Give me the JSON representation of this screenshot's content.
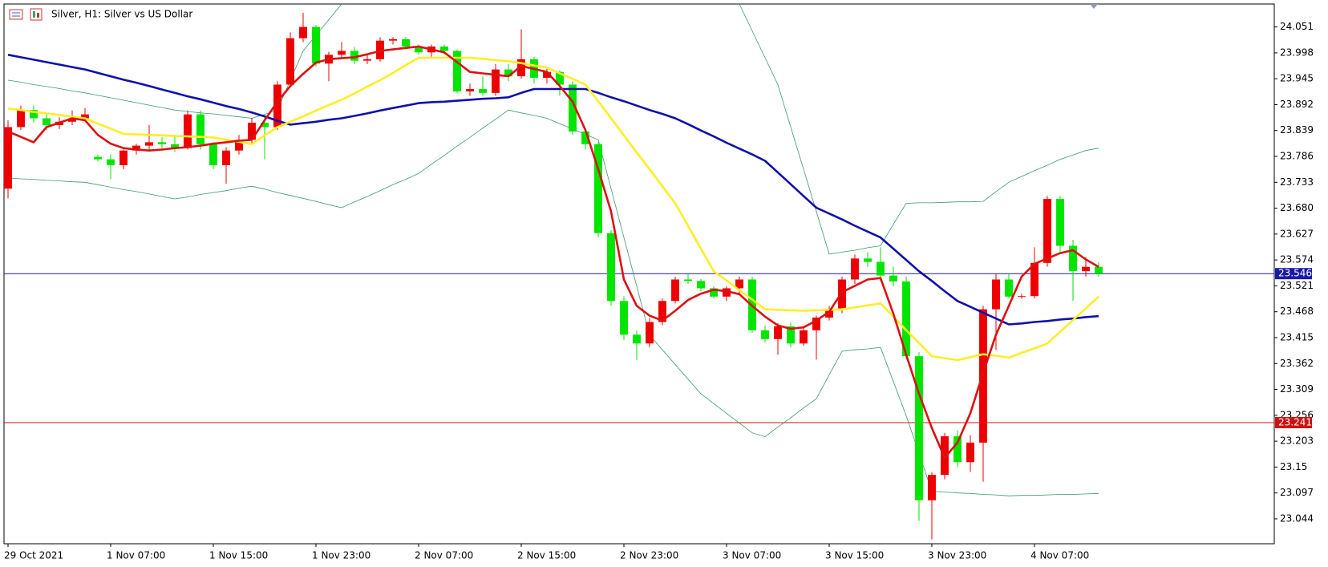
{
  "chart_data": {
    "type": "candlestick",
    "title": "Silver, H1:  Silver vs US Dollar",
    "categories": [
      "29 Oct 2021",
      null,
      null,
      null,
      null,
      null,
      null,
      null,
      "1 Nov 07:00",
      null,
      null,
      null,
      null,
      null,
      null,
      null,
      "1 Nov 15:00",
      null,
      null,
      null,
      null,
      null,
      null,
      null,
      "1 Nov 23:00",
      null,
      null,
      null,
      null,
      null,
      null,
      null,
      "2 Nov 07:00",
      null,
      null,
      null,
      null,
      null,
      null,
      null,
      "2 Nov 15:00",
      null,
      null,
      null,
      null,
      null,
      null,
      null,
      "2 Nov 23:00",
      null,
      null,
      null,
      null,
      null,
      null,
      null,
      "3 Nov 07:00",
      null,
      null,
      null,
      null,
      null,
      null,
      null,
      "3 Nov 15:00",
      null,
      null,
      null,
      null,
      null,
      null,
      null,
      "3 Nov 23:00",
      null,
      null,
      null,
      null,
      null,
      null,
      null,
      "4 Nov 07:00",
      null,
      null,
      null,
      null,
      null
    ],
    "open": [
      23.72,
      23.846,
      23.881,
      23.864,
      23.85,
      23.857,
      23.864,
      23.785,
      23.78,
      23.768,
      23.798,
      23.808,
      23.815,
      23.811,
      23.803,
      23.872,
      23.811,
      23.768,
      23.798,
      23.82,
      23.855,
      23.846,
      23.933,
      24.028,
      24.051,
      23.976,
      23.994,
      24.002,
      23.982,
      23.985,
      24.023,
      24.026,
      24.011,
      23.999,
      24.011,
      24.002,
      23.919,
      23.924,
      23.916,
      23.964,
      23.95,
      23.985,
      23.947,
      23.959,
      23.933,
      23.837,
      23.811,
      23.629,
      23.49,
      23.421,
      23.403,
      23.447,
      23.49,
      23.534,
      23.531,
      23.516,
      23.499,
      23.516,
      23.534,
      23.43,
      23.412,
      23.438,
      23.403,
      23.43,
      23.456,
      23.473,
      23.534,
      23.577,
      23.57,
      23.542,
      23.53,
      23.377,
      23.082,
      23.134,
      23.213,
      23.16,
      23.2,
      23.473,
      23.534,
      23.499,
      23.5,
      23.568,
      23.699,
      23.603,
      23.551,
      23.56
    ],
    "high": [
      23.86,
      23.89,
      23.89,
      23.875,
      23.866,
      23.88,
      23.885,
      23.79,
      23.79,
      23.8,
      23.812,
      23.85,
      23.825,
      23.83,
      23.88,
      23.88,
      23.815,
      23.805,
      23.83,
      23.865,
      23.87,
      23.94,
      24.04,
      24.08,
      24.055,
      24.0,
      24.02,
      24.01,
      23.995,
      24.03,
      24.03,
      24.03,
      24.015,
      24.015,
      24.015,
      24.005,
      23.935,
      23.95,
      23.975,
      23.975,
      24.046,
      23.99,
      23.965,
      23.962,
      23.94,
      23.845,
      23.815,
      23.635,
      23.5,
      23.43,
      23.455,
      23.495,
      23.54,
      23.545,
      23.535,
      23.52,
      23.52,
      23.54,
      23.54,
      23.44,
      23.445,
      23.445,
      23.435,
      23.46,
      23.48,
      23.54,
      23.585,
      23.59,
      23.6,
      23.56,
      23.54,
      23.385,
      23.14,
      23.22,
      23.225,
      23.215,
      23.48,
      23.545,
      23.545,
      23.505,
      23.6,
      23.705,
      23.705,
      23.615,
      23.58,
      23.57
    ],
    "low": [
      23.7,
      23.84,
      23.855,
      23.84,
      23.842,
      23.85,
      23.86,
      23.776,
      23.74,
      23.76,
      23.79,
      23.8,
      23.8,
      23.795,
      23.8,
      23.8,
      23.76,
      23.73,
      23.79,
      23.81,
      23.78,
      23.84,
      23.93,
      24.02,
      23.97,
      23.94,
      23.985,
      23.975,
      23.975,
      23.98,
      24.015,
      24.005,
      23.995,
      23.99,
      23.995,
      23.915,
      23.91,
      23.91,
      23.91,
      23.94,
      23.945,
      23.935,
      23.935,
      23.91,
      23.83,
      23.8,
      23.62,
      23.48,
      23.41,
      23.369,
      23.395,
      23.44,
      23.485,
      23.525,
      23.51,
      23.495,
      23.49,
      23.505,
      23.425,
      23.405,
      23.38,
      23.395,
      23.398,
      23.37,
      23.45,
      23.465,
      23.525,
      23.56,
      23.53,
      23.52,
      23.37,
      23.04,
      23.002,
      23.125,
      23.15,
      23.14,
      23.12,
      23.39,
      23.495,
      23.495,
      23.495,
      23.56,
      23.59,
      23.49,
      23.54,
      23.54
    ],
    "close": [
      23.846,
      23.881,
      23.864,
      23.85,
      23.857,
      23.864,
      23.872,
      23.78,
      23.768,
      23.798,
      23.808,
      23.815,
      23.811,
      23.803,
      23.872,
      23.811,
      23.768,
      23.798,
      23.82,
      23.855,
      23.846,
      23.933,
      24.028,
      24.051,
      23.976,
      23.994,
      24.002,
      23.982,
      23.985,
      24.023,
      24.026,
      24.011,
      23.999,
      24.011,
      24.002,
      23.919,
      23.924,
      23.916,
      23.964,
      23.95,
      23.985,
      23.947,
      23.959,
      23.933,
      23.837,
      23.811,
      23.629,
      23.49,
      23.421,
      23.403,
      23.447,
      23.49,
      23.534,
      23.531,
      23.516,
      23.499,
      23.516,
      23.534,
      23.43,
      23.412,
      23.438,
      23.403,
      23.43,
      23.456,
      23.473,
      23.534,
      23.577,
      23.57,
      23.542,
      23.53,
      23.377,
      23.082,
      23.134,
      23.213,
      23.16,
      23.2,
      23.473,
      23.534,
      23.499,
      23.5,
      23.568,
      23.699,
      23.603,
      23.551,
      23.56,
      23.546
    ],
    "up_color": "#ee0000",
    "down_color": "#00e600",
    "bands": [
      {
        "color": "#3a9a6a",
        "values": [
          23.942,
          23.938,
          23.933,
          23.929,
          23.925,
          23.92,
          23.916,
          23.911,
          23.906,
          23.901,
          23.896,
          23.891,
          23.886,
          23.881,
          23.878,
          23.875,
          23.873,
          23.87,
          23.867,
          23.864,
          23.872,
          23.881,
          23.942,
          24.002,
          24.034,
          24.066,
          24.098,
          24.116,
          24.134,
          24.152,
          24.17,
          24.171,
          24.172,
          24.173,
          24.174,
          24.175,
          24.176,
          24.177,
          24.178,
          24.179,
          24.18,
          24.176,
          24.172,
          24.168,
          24.164,
          24.16,
          24.152,
          24.145,
          24.138,
          24.13,
          24.126,
          24.122,
          24.118,
          24.114,
          24.11,
          24.106,
          24.102,
          24.098,
          24.043,
          23.988,
          23.933,
          23.846,
          23.76,
          23.673,
          23.586,
          23.59,
          23.594,
          23.599,
          23.603,
          23.647,
          23.69,
          23.691,
          23.691,
          23.692,
          23.693,
          23.693,
          23.694,
          23.714,
          23.733,
          23.745,
          23.757,
          23.768,
          23.78,
          23.789,
          23.798,
          23.803
        ]
      },
      {
        "color": "#3a9a6a",
        "values": [
          23.742,
          23.74,
          23.739,
          23.737,
          23.736,
          23.734,
          23.733,
          23.728,
          23.723,
          23.718,
          23.714,
          23.709,
          23.704,
          23.699,
          23.703,
          23.708,
          23.712,
          23.716,
          23.721,
          23.725,
          23.719,
          23.712,
          23.706,
          23.7,
          23.694,
          23.687,
          23.681,
          23.693,
          23.704,
          23.716,
          23.728,
          23.739,
          23.751,
          23.77,
          23.788,
          23.807,
          23.825,
          23.844,
          23.862,
          23.881,
          23.875,
          23.87,
          23.864,
          23.853,
          23.842,
          23.831,
          23.82,
          23.72,
          23.62,
          23.52,
          23.42,
          23.39,
          23.36,
          23.33,
          23.3,
          23.28,
          23.26,
          23.24,
          23.22,
          23.212,
          23.232,
          23.251,
          23.271,
          23.29,
          23.339,
          23.387,
          23.39,
          23.392,
          23.395,
          23.325,
          23.255,
          23.178,
          23.1,
          23.099,
          23.097,
          23.096,
          23.094,
          23.093,
          23.091,
          23.092,
          23.092,
          23.093,
          23.094,
          23.094,
          23.095,
          23.096
        ]
      }
    ],
    "series": [
      {
        "color": "#1010a8",
        "values": [
          23.994,
          23.989,
          23.984,
          23.979,
          23.974,
          23.969,
          23.964,
          23.957,
          23.95,
          23.943,
          23.937,
          23.93,
          23.923,
          23.916,
          23.909,
          23.903,
          23.896,
          23.889,
          23.883,
          23.876,
          23.868,
          23.859,
          23.851,
          23.854,
          23.857,
          23.861,
          23.864,
          23.869,
          23.874,
          23.88,
          23.885,
          23.89,
          23.895,
          23.897,
          23.898,
          23.9,
          23.902,
          23.904,
          23.905,
          23.907,
          23.916,
          23.924,
          23.924,
          23.924,
          23.924,
          23.924,
          23.916,
          23.907,
          23.899,
          23.89,
          23.881,
          23.873,
          23.864,
          23.852,
          23.839,
          23.827,
          23.814,
          23.802,
          23.79,
          23.777,
          23.753,
          23.729,
          23.705,
          23.681,
          23.669,
          23.657,
          23.644,
          23.632,
          23.62,
          23.597,
          23.574,
          23.551,
          23.531,
          23.51,
          23.49,
          23.478,
          23.466,
          23.454,
          23.442,
          23.444,
          23.447,
          23.449,
          23.452,
          23.454,
          23.457,
          23.459
        ]
      },
      {
        "color": "#ffee22",
        "values": [
          23.884,
          23.881,
          23.877,
          23.874,
          23.871,
          23.867,
          23.864,
          23.853,
          23.843,
          23.832,
          23.831,
          23.83,
          23.829,
          23.828,
          23.827,
          23.826,
          23.825,
          23.82,
          23.816,
          23.811,
          23.829,
          23.846,
          23.857,
          23.868,
          23.88,
          23.891,
          23.902,
          23.915,
          23.929,
          23.942,
          23.957,
          23.973,
          23.988,
          23.988,
          23.988,
          23.988,
          23.988,
          23.986,
          23.983,
          23.981,
          23.977,
          23.972,
          23.968,
          23.956,
          23.945,
          23.933,
          23.899,
          23.864,
          23.829,
          23.794,
          23.76,
          23.725,
          23.69,
          23.644,
          23.597,
          23.551,
          23.532,
          23.512,
          23.493,
          23.473,
          23.472,
          23.471,
          23.47,
          23.471,
          23.472,
          23.473,
          23.477,
          23.481,
          23.485,
          23.458,
          23.43,
          23.404,
          23.377,
          23.373,
          23.369,
          23.375,
          23.381,
          23.378,
          23.374,
          23.384,
          23.393,
          23.403,
          23.427,
          23.451,
          23.475,
          23.499
        ]
      },
      {
        "color": "#dd1111",
        "values": [
          23.837,
          23.826,
          23.815,
          23.846,
          23.855,
          23.864,
          23.86,
          23.83,
          23.812,
          23.803,
          23.8,
          23.798,
          23.8,
          23.803,
          23.805,
          23.808,
          23.812,
          23.815,
          23.818,
          23.82,
          23.86,
          23.898,
          23.93,
          23.955,
          23.978,
          23.985,
          23.987,
          23.989,
          23.995,
          24.002,
          24.005,
          24.008,
          24.011,
          24.005,
          23.999,
          23.979,
          23.959,
          23.956,
          23.953,
          23.95,
          23.971,
          23.965,
          23.959,
          23.93,
          23.898,
          23.84,
          23.76,
          23.673,
          23.534,
          23.48,
          23.46,
          23.45,
          23.47,
          23.492,
          23.505,
          23.513,
          23.51,
          23.504,
          23.48,
          23.458,
          23.44,
          23.433,
          23.436,
          23.45,
          23.468,
          23.508,
          23.521,
          23.534,
          23.537,
          23.464,
          23.38,
          23.3,
          23.23,
          23.169,
          23.2,
          23.26,
          23.343,
          23.421,
          23.48,
          23.54,
          23.566,
          23.577,
          23.588,
          23.594,
          23.575,
          23.56
        ]
      }
    ],
    "hlines": [
      {
        "value": 23.546,
        "color": "#1a1aa8"
      },
      {
        "value": 23.241,
        "color": "#cc1111"
      }
    ],
    "ylim": [
      22.993,
      24.098
    ],
    "yticks": [
      24.051,
      23.998,
      23.945,
      23.892,
      23.839,
      23.786,
      23.733,
      {
        "value": 23.68,
        "label": "23.680"
      },
      23.627,
      23.574,
      23.521,
      23.468,
      23.415,
      23.362,
      23.309,
      23.256,
      23.203,
      23.15,
      23.097,
      23.044
    ]
  }
}
